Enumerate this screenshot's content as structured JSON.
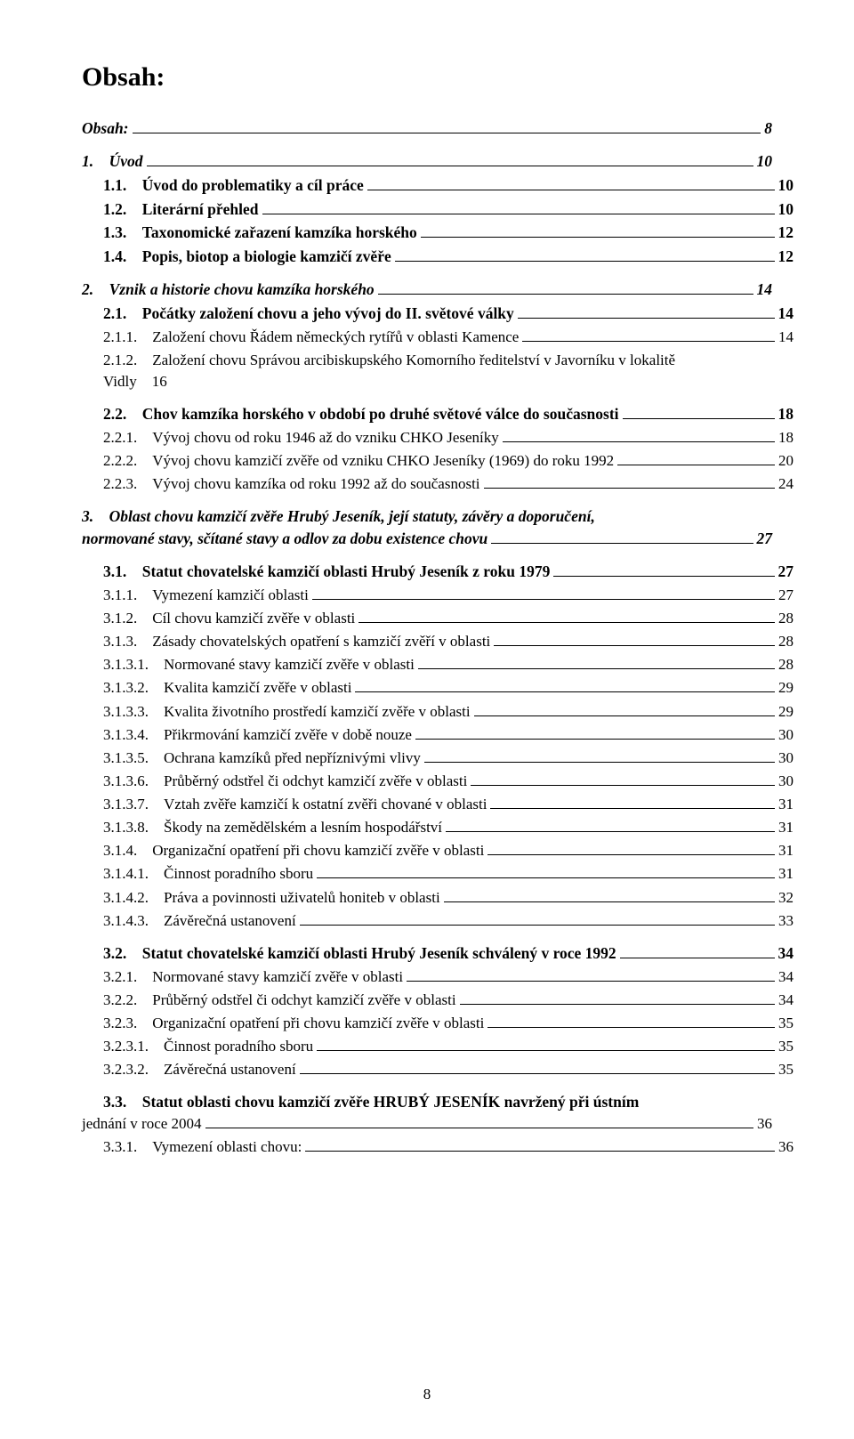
{
  "title": "Obsah:",
  "pageNumber": "8",
  "entries": [
    {
      "cls": "bold-italic lvl0 mt-md",
      "num": "",
      "label": "Obsah:",
      "pg": "8"
    },
    {
      "cls": "bold-italic lvl0 mt-md",
      "num": "1.",
      "label": "Úvod",
      "pg": "10"
    },
    {
      "cls": "bold lvl1 mt-sm",
      "num": "1.1.",
      "label": "Úvod do problematiky a cíl práce",
      "pg": "10"
    },
    {
      "cls": "bold lvl1 mt-sm",
      "num": "1.2.",
      "label": "Literární přehled",
      "pg": "10"
    },
    {
      "cls": "bold lvl1 mt-sm",
      "num": "1.3.",
      "label": "Taxonomické zařazení kamzíka horského",
      "pg": "12"
    },
    {
      "cls": "bold lvl1 mt-sm",
      "num": "1.4.",
      "label": "Popis, biotop a biologie kamzičí zvěře",
      "pg": "12"
    },
    {
      "cls": "bold-italic lvl0 mt-md",
      "num": "2.",
      "label": "Vznik a historie chovu kamzíka horského",
      "pg": "14"
    },
    {
      "cls": "bold lvl1 mt-sm",
      "num": "2.1.",
      "label": "Počátky založení chovu a jeho vývoj do II. světové války",
      "pg": "14"
    },
    {
      "cls": "lvl2 mt-sm",
      "num": "2.1.1.",
      "label": "Založení chovu Řádem německých rytířů v oblasti Kamence",
      "pg": "14"
    },
    {
      "wrap": true,
      "cls": "lvl2 mt-sm",
      "num": "2.1.2.",
      "line1": "Založení chovu Správou arcibiskupského Komorního ředitelství v Javorníku v lokalitě",
      "line2": "Vidly 16",
      "pg": ""
    },
    {
      "cls": "bold lvl1 mt-md",
      "num": "2.2.",
      "label": "Chov kamzíka horského v období po druhé světové válce do současnosti",
      "pg": "18"
    },
    {
      "cls": "lvl2 mt-sm",
      "num": "2.2.1.",
      "label": "Vývoj chovu od roku 1946 až do vzniku CHKO Jeseníky",
      "pg": "18"
    },
    {
      "cls": "lvl2 mt-sm",
      "num": "2.2.2.",
      "label": "Vývoj chovu kamzičí zvěře od vzniku CHKO Jeseníky (1969) do roku 1992",
      "pg": "20"
    },
    {
      "cls": "lvl2 mt-sm",
      "num": "2.2.3.",
      "label": "Vývoj chovu kamzíka od roku 1992 až do současnosti",
      "pg": "24"
    },
    {
      "wrap": true,
      "cls": "bold-italic lvl0 mt-md",
      "num": "3.",
      "line1": "Oblast chovu kamzičí zvěře Hrubý Jeseník, její statuty, závěry a doporučení,",
      "line2": "normované stavy, sčítané stavy a odlov za dobu existence chovu",
      "pg": "27"
    },
    {
      "cls": "bold lvl1 mt-md",
      "num": "3.1.",
      "label": "Statut chovatelské kamzičí oblasti Hrubý Jeseník z roku 1979",
      "pg": "27"
    },
    {
      "cls": "lvl2 mt-sm",
      "num": "3.1.1.",
      "label": "Vymezení kamzičí oblasti",
      "pg": "27"
    },
    {
      "cls": "lvl2 mt-sm",
      "num": "3.1.2.",
      "label": "Cíl chovu kamzičí zvěře v oblasti",
      "pg": "28"
    },
    {
      "cls": "lvl2 mt-sm",
      "num": "3.1.3.",
      "label": "Zásady chovatelských opatření s kamzičí zvěří v oblasti",
      "pg": "28"
    },
    {
      "cls": "lvl2 mt-sm",
      "num": "3.1.3.1.",
      "label": "Normované stavy kamzičí zvěře v oblasti",
      "pg": "28"
    },
    {
      "cls": "lvl2 mt-sm",
      "num": "3.1.3.2.",
      "label": "Kvalita kamzičí zvěře v oblasti",
      "pg": "29"
    },
    {
      "cls": "lvl2 mt-sm",
      "num": "3.1.3.3.",
      "label": "Kvalita životního prostředí kamzičí zvěře v oblasti",
      "pg": "29"
    },
    {
      "cls": "lvl2 mt-sm",
      "num": "3.1.3.4.",
      "label": "Přikrmování kamzičí zvěře v době nouze",
      "pg": "30"
    },
    {
      "cls": "lvl2 mt-sm",
      "num": "3.1.3.5.",
      "label": "Ochrana kamzíků před nepříznivými vlivy",
      "pg": "30"
    },
    {
      "cls": "lvl2 mt-sm",
      "num": "3.1.3.6.",
      "label": "Průběrný odstřel či odchyt kamzičí zvěře v oblasti",
      "pg": "30"
    },
    {
      "cls": "lvl2 mt-sm",
      "num": "3.1.3.7.",
      "label": "Vztah zvěře kamzičí k ostatní zvěři chované v oblasti",
      "pg": "31"
    },
    {
      "cls": "lvl2 mt-sm",
      "num": "3.1.3.8.",
      "label": "Škody na zemědělském a lesním hospodářství",
      "pg": "31"
    },
    {
      "cls": "lvl2 mt-sm",
      "num": "3.1.4.",
      "label": "Organizační opatření při chovu kamzičí zvěře v oblasti",
      "pg": "31"
    },
    {
      "cls": "lvl2 mt-sm",
      "num": "3.1.4.1.",
      "label": "Činnost poradního sboru",
      "pg": "31"
    },
    {
      "cls": "lvl2 mt-sm",
      "num": "3.1.4.2.",
      "label": "Práva a povinnosti uživatelů honiteb v oblasti",
      "pg": "32"
    },
    {
      "cls": "lvl2 mt-sm",
      "num": "3.1.4.3.",
      "label": "Závěrečná ustanovení",
      "pg": "33"
    },
    {
      "cls": "bold lvl1 mt-md",
      "num": "3.2.",
      "label": "Statut chovatelské kamzičí oblasti Hrubý Jeseník schválený v roce 1992",
      "pg": "34"
    },
    {
      "cls": "lvl2 mt-sm",
      "num": "3.2.1.",
      "label": "Normované stavy kamzičí zvěře v oblasti",
      "pg": "34"
    },
    {
      "cls": "lvl2 mt-sm",
      "num": "3.2.2.",
      "label": "Průběrný odstřel či odchyt kamzičí zvěře v oblasti",
      "pg": "34"
    },
    {
      "cls": "lvl2 mt-sm",
      "num": "3.2.3.",
      "label": "Organizační opatření při chovu kamzičí zvěře v oblasti",
      "pg": "35"
    },
    {
      "cls": "lvl2 mt-sm",
      "num": "3.2.3.1.",
      "label": "Činnost poradního sboru",
      "pg": "35"
    },
    {
      "cls": "lvl2 mt-sm",
      "num": "3.2.3.2.",
      "label": "Závěrečná ustanovení",
      "pg": "35"
    },
    {
      "wrap": true,
      "cls": "bold lvl1 mt-md",
      "num": "3.3.",
      "line1": "Statut oblasti chovu kamzičí zvěře HRUBÝ JESENÍK navržený při ústním",
      "line2": "jednání v roce 2004",
      "line2cls": "lvl0",
      "pg": "36"
    },
    {
      "cls": "lvl2 mt-sm",
      "num": "3.3.1.",
      "label": "Vymezení oblasti chovu:",
      "pg": "36"
    }
  ]
}
